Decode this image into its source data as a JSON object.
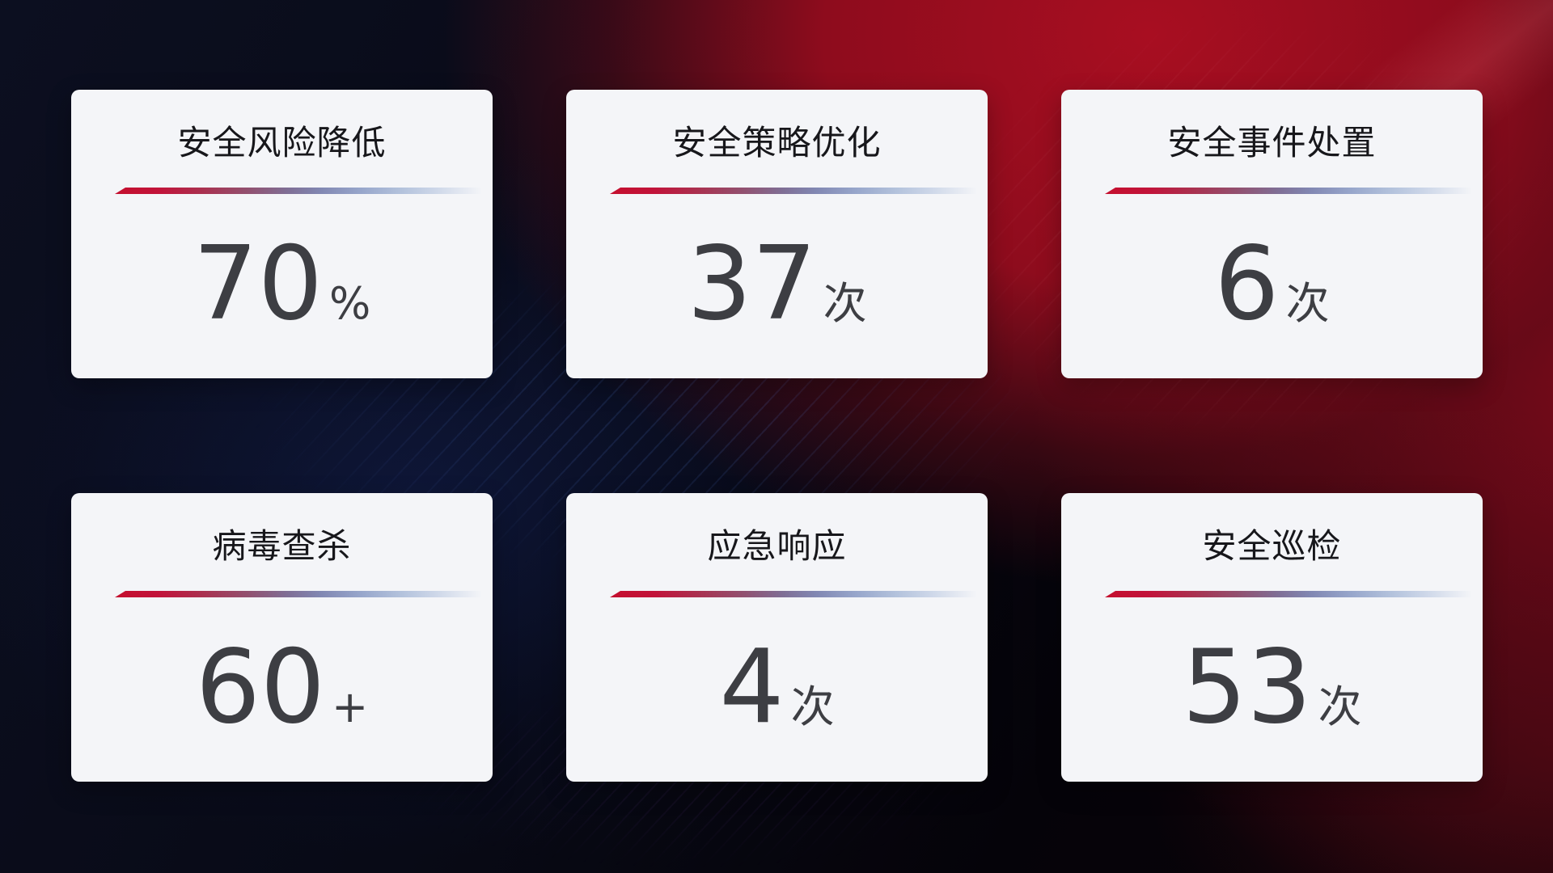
{
  "theme": {
    "colors": {
      "bg_navy": "#0c0f20",
      "bg_red": "#a80e21",
      "card_bg": "#f4f5f8",
      "title": "#17171b",
      "value": "#3d3e43",
      "line_start": "#c40f2e",
      "line_mid": "#8187b2",
      "line_end": "#ccd6e8"
    }
  },
  "cards": [
    {
      "title": "安全风险降低",
      "value": "70",
      "unit": "%"
    },
    {
      "title": "安全策略优化",
      "value": "37",
      "unit": "次"
    },
    {
      "title": "安全事件处置",
      "value": "6",
      "unit": "次"
    },
    {
      "title": "病毒查杀",
      "value": "60",
      "unit": "+"
    },
    {
      "title": "应急响应",
      "value": "4",
      "unit": "次"
    },
    {
      "title": "安全巡检",
      "value": "53",
      "unit": "次"
    }
  ]
}
